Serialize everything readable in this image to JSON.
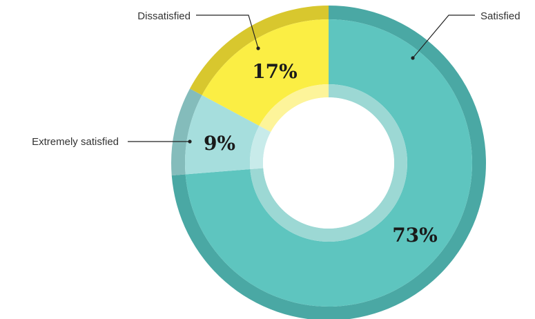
{
  "chart_data": {
    "type": "pie",
    "variant": "donut",
    "categories": [
      "Satisfied",
      "Extremely satisfied",
      "Dissatisfied"
    ],
    "values": [
      73,
      9,
      17
    ],
    "labels": [
      "73%",
      "9%",
      "17%"
    ],
    "legend": "callouts",
    "colors": {
      "Satisfied": {
        "fill": "#5ec5bf",
        "outer": "#4aa8a4",
        "inner": "#9cd8d4"
      },
      "Extremely satisfied": {
        "fill": "#a6dedd",
        "outer": "#84bcbb",
        "inner": "#c8ebea"
      },
      "Dissatisfied": {
        "fill": "#fbee44",
        "outer": "#d8c72e",
        "inner": "#fdf49a"
      }
    }
  }
}
